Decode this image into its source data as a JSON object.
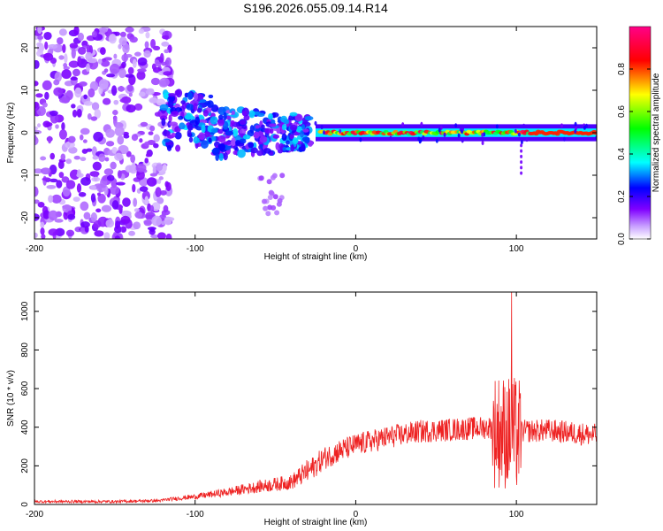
{
  "title": "S196.2026.055.09.14.R14",
  "chart_data": [
    {
      "type": "heatmap",
      "name": "spectrogram",
      "xlabel": "Height of straight line (km)",
      "ylabel": "Frequency (Hz)",
      "xlim": [
        -200,
        150
      ],
      "ylim": [
        -25,
        25
      ],
      "xticks": [
        -200,
        -100,
        0,
        100
      ],
      "yticks": [
        -20,
        -10,
        0,
        10,
        20
      ],
      "colorbar": {
        "label": "Normalized spectral amplitude",
        "range": [
          0.0,
          1.0
        ],
        "ticks": [
          0.0,
          0.2,
          0.4,
          0.6,
          0.8
        ],
        "colors": [
          "#ffffff",
          "#a000ff",
          "#0000ff",
          "#00ffff",
          "#00ff00",
          "#ffff00",
          "#ff0000",
          "#ff00aa"
        ]
      },
      "description_regions": [
        {
          "x": [
            -200,
            -120
          ],
          "freq_spread": 25,
          "amp": 0.15,
          "note": "scattered noise"
        },
        {
          "x": [
            -120,
            -30
          ],
          "freq_center": 0,
          "freq_spread": 6,
          "amp": 0.3
        },
        {
          "x": [
            -30,
            150
          ],
          "freq_center": 0,
          "freq_spread": 1.5,
          "amp": 0.9
        }
      ]
    },
    {
      "type": "line",
      "name": "snr",
      "xlabel": "Height of straight line (km)",
      "ylabel": "SNR (10 * v/v)",
      "xlim": [
        -200,
        150
      ],
      "ylim": [
        0,
        1100
      ],
      "xticks": [
        -200,
        -100,
        0,
        100
      ],
      "yticks": [
        0,
        200,
        400,
        600,
        800,
        1000
      ],
      "color": "#ee2222",
      "profile": [
        [
          -200,
          15
        ],
        [
          -150,
          15
        ],
        [
          -120,
          20
        ],
        [
          -100,
          35
        ],
        [
          -80,
          55
        ],
        [
          -60,
          80
        ],
        [
          -40,
          100
        ],
        [
          -30,
          150
        ],
        [
          -20,
          220
        ],
        [
          -10,
          260
        ],
        [
          0,
          290
        ],
        [
          10,
          310
        ],
        [
          20,
          330
        ],
        [
          40,
          360
        ],
        [
          60,
          370
        ],
        [
          80,
          380
        ],
        [
          90,
          380
        ],
        [
          100,
          360
        ],
        [
          120,
          365
        ],
        [
          150,
          340
        ]
      ],
      "peak": {
        "x": 97,
        "y": 1100
      }
    }
  ]
}
